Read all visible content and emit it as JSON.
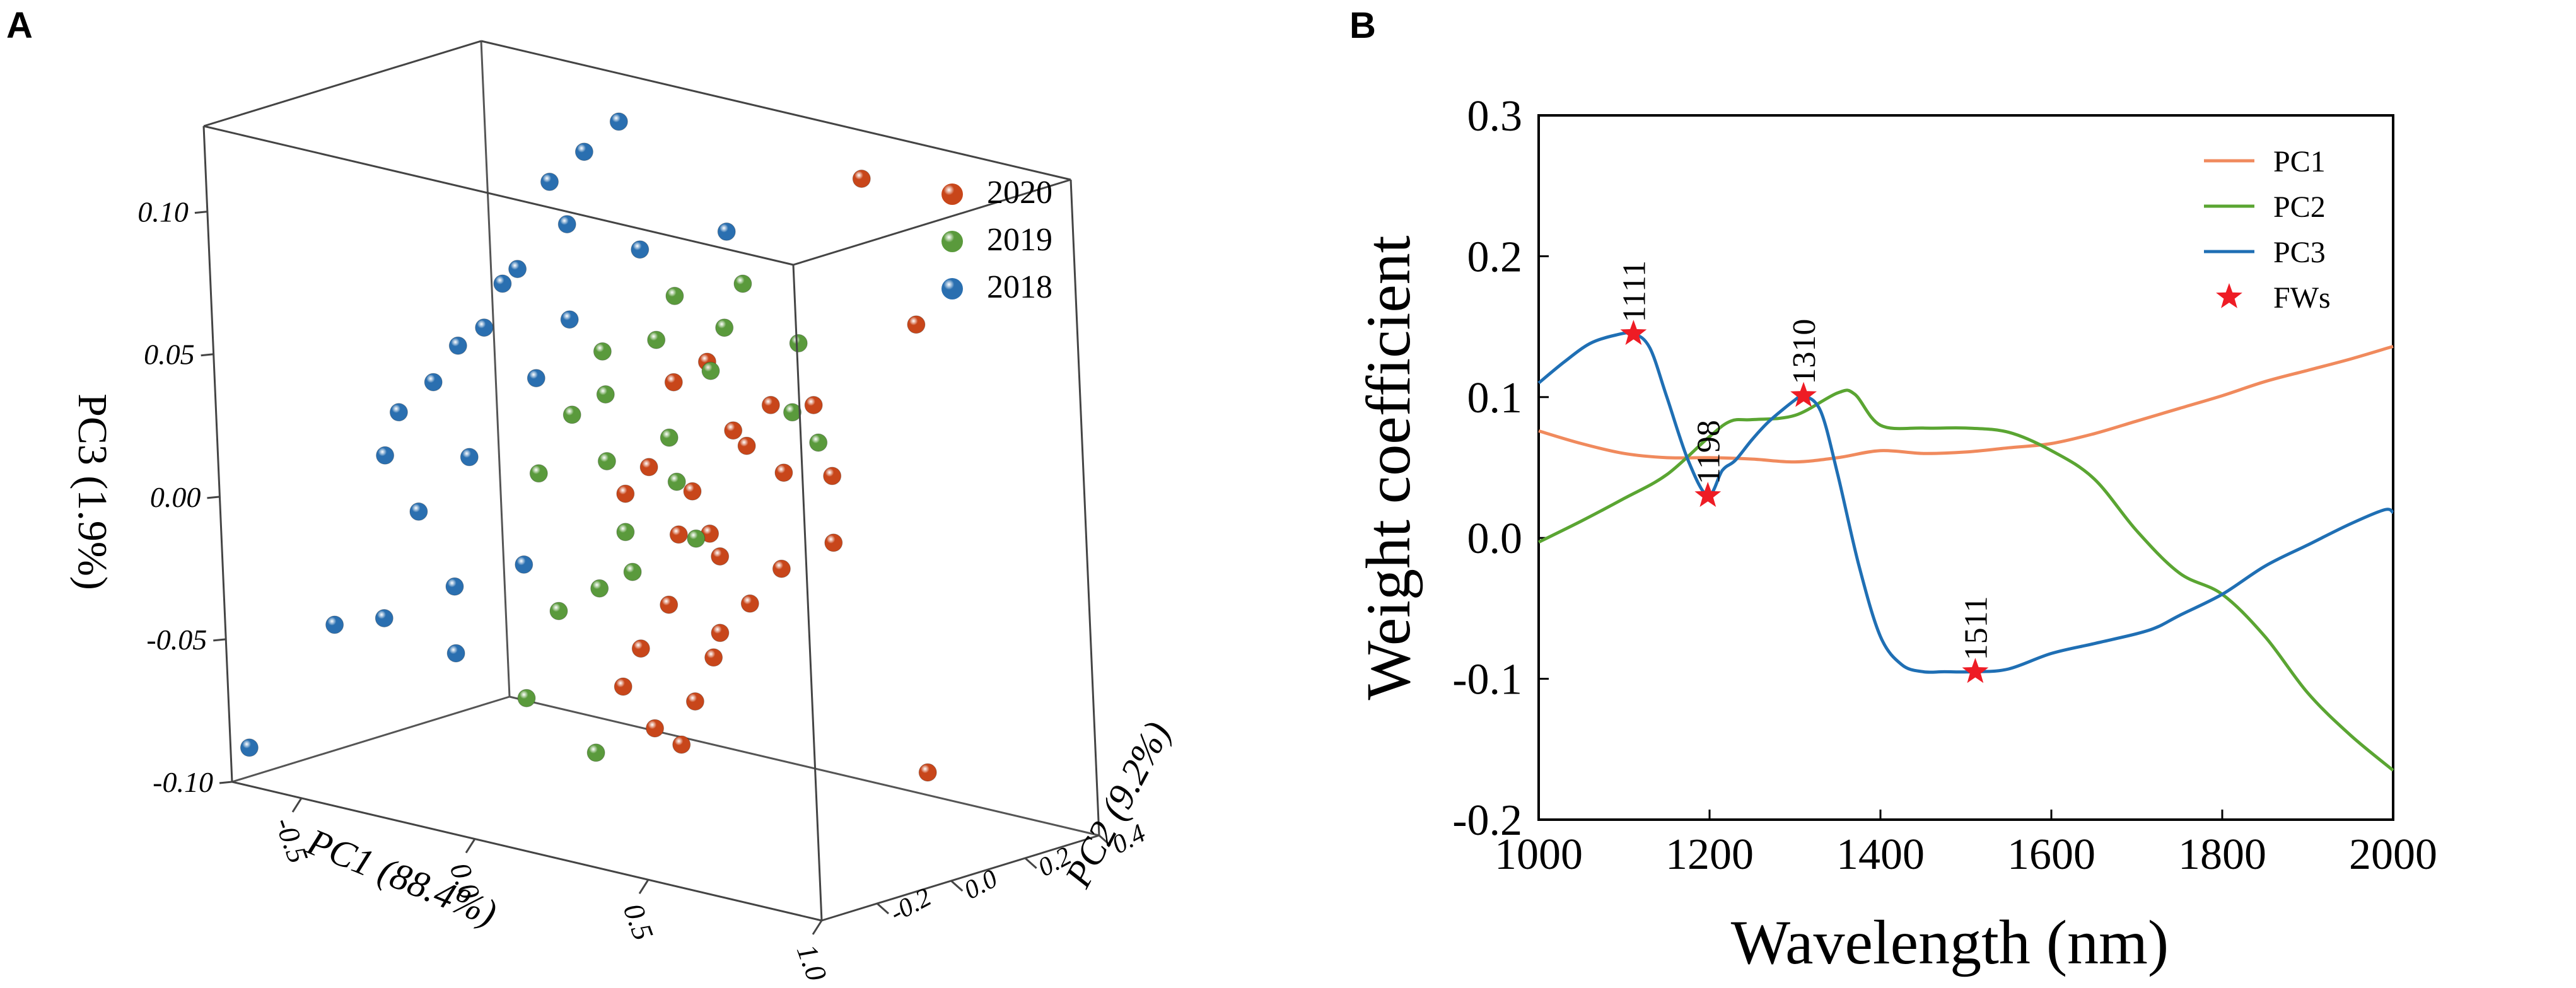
{
  "panels": {
    "a": "A",
    "b": "B"
  },
  "chart_data": [
    {
      "type": "scatter",
      "subtype": "3d",
      "xlabel": "PC1 (88.4%)",
      "ylabel": "PC2 (9.2%)",
      "zlabel": "PC3 (1.9%)",
      "xlim": [
        -0.7,
        1.0
      ],
      "ylim": [
        -0.35,
        0.4
      ],
      "zlim": [
        -0.1,
        0.13
      ],
      "xticks": [
        "-0.5",
        "0.0",
        "0.5",
        "1.0"
      ],
      "yticks": [
        "-0.2",
        "0.0",
        "0.2",
        "0.4"
      ],
      "zticks": [
        "-0.10",
        "-0.05",
        "0.00",
        "0.05",
        "0.10"
      ],
      "legend": [
        "2020",
        "2019",
        "2018"
      ],
      "legend_position": "top-right",
      "colors": {
        "2020": "#c8461a",
        "2019": "#5a9a3c",
        "2018": "#2a6fb0"
      },
      "series": [
        {
          "name": "2020",
          "points": [
            [
              0.5,
              0.3,
              0.12
            ],
            [
              0.75,
              0.2,
              0.08
            ],
            [
              1.0,
              -0.05,
              -0.06
            ],
            [
              0.3,
              0.05,
              0.06
            ],
            [
              0.4,
              0.02,
              0.04
            ],
            [
              0.35,
              -0.05,
              0.02
            ],
            [
              0.2,
              0.05,
              0.05
            ],
            [
              0.55,
              0.1,
              0.05
            ],
            [
              0.45,
              -0.1,
              0.01
            ],
            [
              0.6,
              -0.05,
              0.0
            ],
            [
              0.25,
              0.0,
              0.0
            ],
            [
              0.3,
              -0.08,
              -0.02
            ],
            [
              0.5,
              -0.15,
              -0.03
            ],
            [
              0.35,
              0.1,
              0.03
            ],
            [
              0.15,
              0.02,
              0.02
            ],
            [
              0.4,
              0.15,
              0.02
            ],
            [
              0.65,
              0.05,
              0.03
            ],
            [
              0.2,
              -0.12,
              -0.05
            ],
            [
              0.45,
              -0.2,
              -0.06
            ],
            [
              0.55,
              -0.25,
              -0.04
            ],
            [
              0.1,
              0.0,
              0.01
            ],
            [
              0.7,
              0.0,
              0.01
            ],
            [
              0.28,
              0.08,
              -0.01
            ],
            [
              0.38,
              -0.02,
              -0.03
            ],
            [
              0.48,
              0.05,
              0.05
            ],
            [
              0.32,
              -0.15,
              -0.06
            ],
            [
              0.18,
              -0.05,
              -0.04
            ],
            [
              0.58,
              -0.12,
              -0.01
            ]
          ]
        },
        {
          "name": "2019",
          "points": [
            [
              0.1,
              0.1,
              0.06
            ],
            [
              0.0,
              0.05,
              0.04
            ],
            [
              0.2,
              0.15,
              0.05
            ],
            [
              0.05,
              0.0,
              0.02
            ],
            [
              0.3,
              0.1,
              0.07
            ],
            [
              0.15,
              -0.05,
              0.0
            ],
            [
              -0.1,
              0.05,
              0.03
            ],
            [
              0.25,
              0.2,
              0.08
            ],
            [
              0.35,
              0.25,
              0.06
            ],
            [
              0.0,
              -0.1,
              -0.03
            ],
            [
              0.1,
              -0.08,
              -0.02
            ],
            [
              -0.05,
              -0.15,
              -0.06
            ],
            [
              0.2,
              -0.2,
              -0.07
            ],
            [
              0.4,
              0.18,
              0.04
            ],
            [
              0.12,
              0.12,
              0.01
            ],
            [
              -0.15,
              0.0,
              0.01
            ],
            [
              0.3,
              0.0,
              0.0
            ],
            [
              0.05,
              0.2,
              0.07
            ],
            [
              0.45,
              0.2,
              0.03
            ],
            [
              0.22,
              -0.1,
              -0.01
            ],
            [
              -0.08,
              0.12,
              0.05
            ],
            [
              0.18,
              0.05,
              0.03
            ]
          ]
        },
        {
          "name": "2018",
          "points": [
            [
              -0.3,
              0.2,
              0.1
            ],
            [
              -0.2,
              0.15,
              0.09
            ],
            [
              -0.4,
              0.1,
              0.05
            ],
            [
              -0.5,
              0.05,
              0.03
            ],
            [
              -0.35,
              0.0,
              0.01
            ],
            [
              -0.45,
              -0.05,
              -0.01
            ],
            [
              -0.3,
              -0.1,
              -0.03
            ],
            [
              -0.25,
              0.25,
              0.11
            ],
            [
              -0.55,
              0.0,
              0.02
            ],
            [
              -0.2,
              0.05,
              0.04
            ],
            [
              -0.15,
              0.1,
              0.06
            ],
            [
              -0.6,
              -0.15,
              -0.05
            ],
            [
              -0.4,
              -0.2,
              -0.04
            ],
            [
              -0.1,
              0.25,
              0.08
            ],
            [
              -0.25,
              -0.15,
              -0.05
            ],
            [
              -0.35,
              0.15,
              0.07
            ],
            [
              -0.5,
              0.12,
              0.04
            ],
            [
              -0.15,
              -0.05,
              -0.02
            ],
            [
              -0.65,
              0.05,
              0.0
            ],
            [
              -0.2,
              0.3,
              0.12
            ],
            [
              0.1,
              0.3,
              0.09
            ],
            [
              -0.45,
              0.2,
              0.06
            ],
            [
              -0.7,
              -0.3,
              -0.09
            ]
          ]
        }
      ]
    },
    {
      "type": "line",
      "xlabel": "Wavelength (nm)",
      "ylabel": "Weight coefficient",
      "xlim": [
        1000,
        2000
      ],
      "ylim": [
        -0.2,
        0.3
      ],
      "xticks": [
        "1000",
        "1200",
        "1400",
        "1600",
        "1800",
        "2000"
      ],
      "yticks": [
        "-0.2",
        "-0.1",
        "0.0",
        "0.1",
        "0.2",
        "0.3"
      ],
      "legend_position": "top-right",
      "series": [
        {
          "name": "PC1",
          "color": "#f08a5d",
          "x": [
            1000,
            1050,
            1100,
            1150,
            1200,
            1250,
            1300,
            1350,
            1400,
            1450,
            1500,
            1550,
            1600,
            1650,
            1700,
            1750,
            1800,
            1850,
            1900,
            1950,
            2000
          ],
          "y": [
            0.076,
            0.067,
            0.06,
            0.057,
            0.057,
            0.056,
            0.054,
            0.057,
            0.062,
            0.06,
            0.061,
            0.064,
            0.067,
            0.074,
            0.083,
            0.092,
            0.101,
            0.111,
            0.119,
            0.127,
            0.136
          ]
        },
        {
          "name": "PC2",
          "color": "#5aa532",
          "x": [
            1000,
            1050,
            1100,
            1150,
            1200,
            1225,
            1250,
            1300,
            1350,
            1370,
            1400,
            1450,
            1500,
            1550,
            1600,
            1650,
            1700,
            1750,
            1800,
            1850,
            1900,
            1950,
            2000
          ],
          "y": [
            -0.003,
            0.012,
            0.028,
            0.045,
            0.072,
            0.083,
            0.084,
            0.087,
            0.103,
            0.102,
            0.08,
            0.078,
            0.078,
            0.075,
            0.062,
            0.042,
            0.005,
            -0.025,
            -0.04,
            -0.07,
            -0.11,
            -0.14,
            -0.165
          ]
        },
        {
          "name": "PC3",
          "color": "#1f6fb4",
          "x": [
            1000,
            1030,
            1060,
            1090,
            1111,
            1130,
            1150,
            1175,
            1198,
            1215,
            1230,
            1250,
            1270,
            1300,
            1310,
            1330,
            1350,
            1375,
            1400,
            1425,
            1450,
            1475,
            1511,
            1550,
            1600,
            1650,
            1700,
            1725,
            1750,
            1800,
            1850,
            1900,
            1950,
            1990,
            2000
          ],
          "y": [
            0.11,
            0.125,
            0.138,
            0.144,
            0.145,
            0.135,
            0.1,
            0.055,
            0.03,
            0.048,
            0.055,
            0.07,
            0.083,
            0.098,
            0.101,
            0.09,
            0.045,
            -0.02,
            -0.07,
            -0.09,
            -0.095,
            -0.095,
            -0.095,
            -0.093,
            -0.082,
            -0.075,
            -0.068,
            -0.063,
            -0.055,
            -0.04,
            -0.02,
            -0.005,
            0.01,
            0.02,
            0.018
          ]
        }
      ],
      "fws": {
        "name": "FWs",
        "color": "#ee1c25",
        "points": [
          {
            "x": 1111,
            "y": 0.145,
            "label": "1111"
          },
          {
            "x": 1198,
            "y": 0.03,
            "label": "1198"
          },
          {
            "x": 1310,
            "y": 0.101,
            "label": "1310"
          },
          {
            "x": 1511,
            "y": -0.095,
            "label": "1511"
          }
        ]
      }
    }
  ]
}
